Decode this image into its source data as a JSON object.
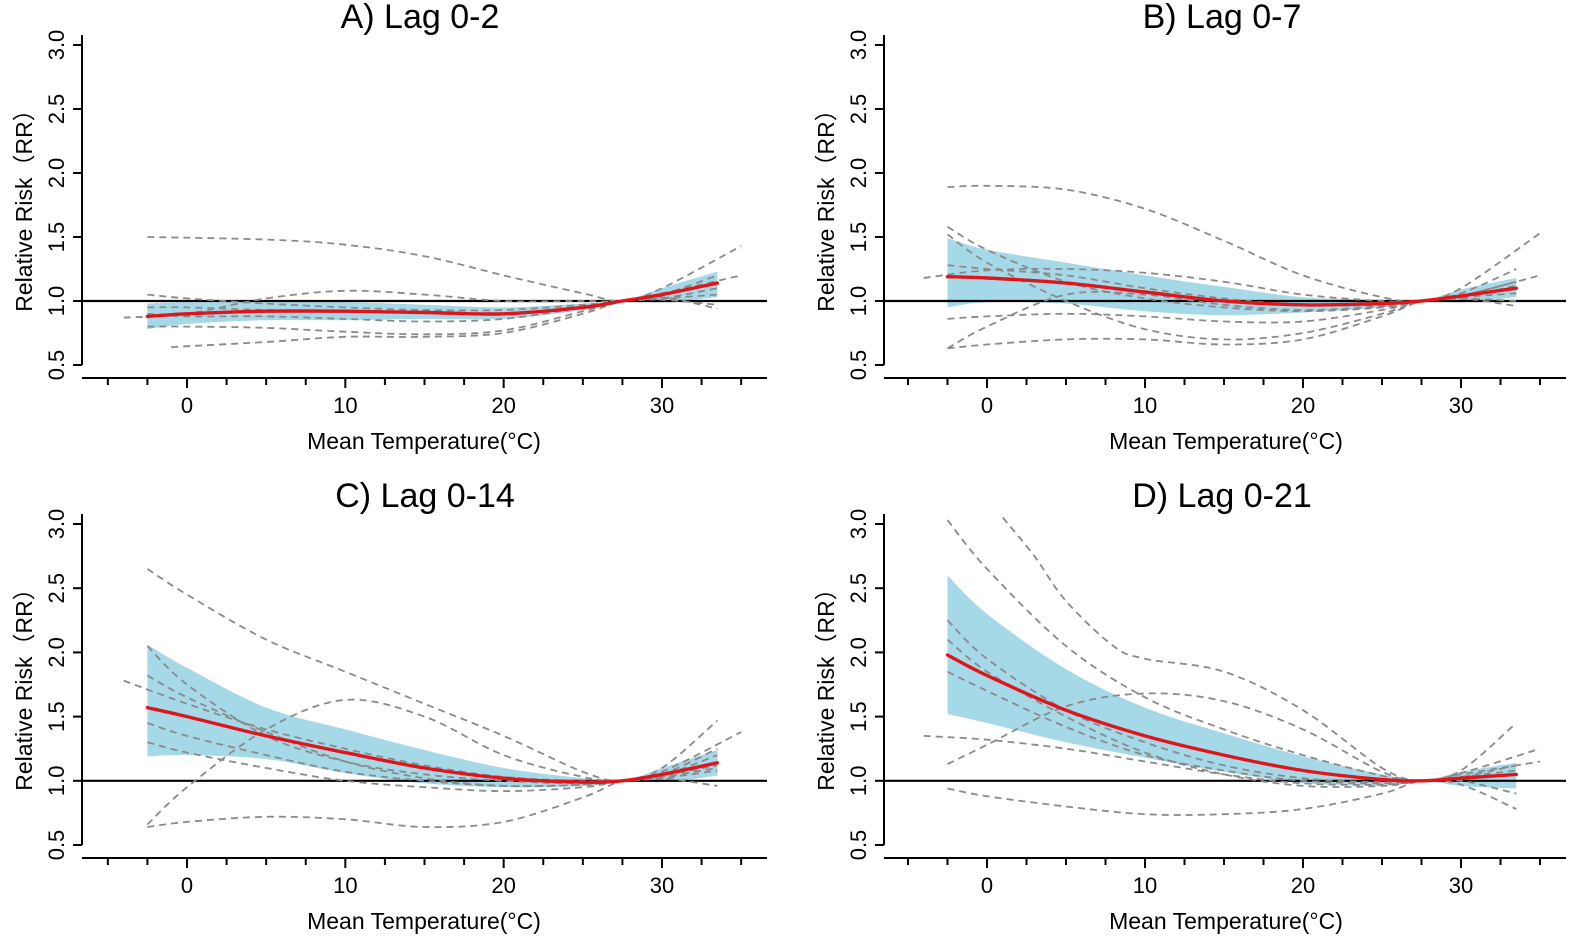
{
  "chart_data": [
    {
      "type": "line",
      "title": "A) Lag 0-2",
      "xlabel": "Mean Temperature(°C)",
      "ylabel": "Relative Risk（RR）",
      "xlim": [
        -7,
        35.5
      ],
      "ylim": [
        0.45,
        3.05
      ],
      "xticks": [
        0,
        10,
        20,
        30
      ],
      "yticks": [
        0.5,
        1.0,
        1.5,
        2.0,
        2.5,
        3.0
      ],
      "ytick_labels": [
        "0.5",
        "1.0",
        "1.5",
        "2.0",
        "2.5",
        "3.0"
      ],
      "reference_y": 1.0,
      "pooled": {
        "x": [
          -2.5,
          0,
          5,
          10,
          15,
          20,
          25,
          27.5,
          30,
          33.5
        ],
        "y": [
          0.88,
          0.9,
          0.92,
          0.92,
          0.91,
          0.9,
          0.95,
          1.0,
          1.05,
          1.14
        ]
      },
      "ci": {
        "x": [
          -2.5,
          0,
          5,
          10,
          15,
          20,
          25,
          27.5,
          30,
          33.5
        ],
        "lower": [
          0.78,
          0.82,
          0.85,
          0.85,
          0.86,
          0.86,
          0.93,
          1.0,
          0.99,
          1.03
        ],
        "upper": [
          0.98,
          0.99,
          0.99,
          0.99,
          0.97,
          0.95,
          0.98,
          1.0,
          1.1,
          1.23
        ]
      },
      "cities": [
        {
          "x": [
            -2.5,
            5,
            10,
            15,
            20,
            25,
            27.5,
            30,
            35
          ],
          "y": [
            1.5,
            1.48,
            1.44,
            1.35,
            1.2,
            1.06,
            1.0,
            1.1,
            1.43
          ]
        },
        {
          "x": [
            -4,
            0,
            5,
            10,
            15,
            20,
            25,
            27.5,
            30,
            35
          ],
          "y": [
            0.87,
            0.9,
            1.02,
            1.08,
            1.05,
            1.0,
            1.0,
            1.0,
            1.06,
            1.2
          ]
        },
        {
          "x": [
            -2.5,
            0,
            5,
            10,
            15,
            20,
            25,
            27.5,
            30,
            33.5
          ],
          "y": [
            1.05,
            1.02,
            0.98,
            0.95,
            0.93,
            0.93,
            0.97,
            1.0,
            1.05,
            1.2
          ]
        },
        {
          "x": [
            -2.5,
            0,
            5,
            10,
            15,
            20,
            25,
            27.5,
            30,
            33.5
          ],
          "y": [
            0.95,
            0.95,
            0.93,
            0.92,
            0.92,
            0.9,
            0.96,
            1.0,
            1.02,
            1.1
          ]
        },
        {
          "x": [
            -2.5,
            0,
            5,
            10,
            15,
            20,
            25,
            27.5,
            30,
            33.5
          ],
          "y": [
            0.8,
            0.8,
            0.79,
            0.76,
            0.74,
            0.77,
            0.92,
            1.0,
            1.01,
            0.97
          ]
        },
        {
          "x": [
            -1,
            5,
            10,
            15,
            20,
            25,
            27.5,
            30,
            33.5
          ],
          "y": [
            0.64,
            0.68,
            0.72,
            0.72,
            0.75,
            0.9,
            1.0,
            1.03,
            0.94
          ]
        },
        {
          "x": [
            -2.5,
            0,
            5,
            10,
            15,
            20,
            25,
            27.5,
            30,
            33.5
          ],
          "y": [
            0.9,
            0.88,
            0.88,
            0.86,
            0.84,
            0.86,
            0.95,
            1.0,
            1.02,
            1.05
          ]
        }
      ]
    },
    {
      "type": "line",
      "title": "B) Lag 0-7",
      "xlabel": "Mean Temperature(°C)",
      "ylabel": "Relative Risk（RR）",
      "xlim": [
        -7,
        35.5
      ],
      "ylim": [
        0.45,
        3.05
      ],
      "xticks": [
        0,
        10,
        20,
        30
      ],
      "yticks": [
        0.5,
        1.0,
        1.5,
        2.0,
        2.5,
        3.0
      ],
      "ytick_labels": [
        "0.5",
        "1.0",
        "1.5",
        "2.0",
        "2.5",
        "3.0"
      ],
      "reference_y": 1.0,
      "pooled": {
        "x": [
          -2.5,
          0,
          5,
          10,
          15,
          20,
          25,
          27.5,
          30,
          33.5
        ],
        "y": [
          1.19,
          1.18,
          1.14,
          1.07,
          1.0,
          0.97,
          0.98,
          1.0,
          1.04,
          1.1
        ]
      },
      "ci": {
        "x": [
          -2.5,
          0,
          5,
          10,
          15,
          20,
          25,
          27.5,
          30,
          33.5
        ],
        "lower": [
          0.95,
          0.99,
          0.98,
          0.92,
          0.89,
          0.91,
          0.95,
          1.0,
          0.99,
          1.03
        ],
        "upper": [
          1.49,
          1.4,
          1.3,
          1.2,
          1.11,
          1.03,
          1.01,
          1.0,
          1.09,
          1.18
        ]
      },
      "cities": [
        {
          "x": [
            -2.5,
            0,
            5,
            10,
            15,
            20,
            25,
            27.5,
            30,
            35
          ],
          "y": [
            1.89,
            1.9,
            1.87,
            1.72,
            1.47,
            1.2,
            1.03,
            1.0,
            1.1,
            1.53
          ]
        },
        {
          "x": [
            -4,
            0,
            5,
            10,
            15,
            20,
            25,
            27.5,
            30,
            35
          ],
          "y": [
            1.18,
            1.24,
            1.25,
            1.22,
            1.15,
            1.05,
            1.0,
            1.0,
            1.04,
            1.2
          ]
        },
        {
          "x": [
            -2.5,
            0,
            5,
            10,
            15,
            20,
            25,
            27.5,
            30,
            33.5
          ],
          "y": [
            1.58,
            1.4,
            1.15,
            1.02,
            0.95,
            0.92,
            0.95,
            1.0,
            1.06,
            1.25
          ]
        },
        {
          "x": [
            -2.5,
            0,
            5,
            10,
            15,
            20,
            25,
            27.5,
            30,
            33.5
          ],
          "y": [
            1.28,
            1.25,
            1.2,
            1.1,
            1.02,
            0.97,
            0.97,
            1.0,
            1.03,
            1.12
          ]
        },
        {
          "x": [
            -2.5,
            0,
            5,
            10,
            15,
            20,
            25,
            27.5,
            30,
            33.5
          ],
          "y": [
            0.63,
            0.8,
            1.05,
            1.05,
            0.97,
            0.93,
            0.96,
            1.0,
            1.03,
            1.06
          ]
        },
        {
          "x": [
            -2.5,
            0,
            5,
            10,
            15,
            20,
            25,
            27.5,
            30,
            33.5
          ],
          "y": [
            0.86,
            0.88,
            0.9,
            0.88,
            0.84,
            0.84,
            0.93,
            1.0,
            1.02,
            1.0
          ]
        },
        {
          "x": [
            -2.5,
            0,
            5,
            10,
            15,
            20,
            25,
            27.5,
            30,
            33.5
          ],
          "y": [
            1.52,
            1.3,
            1.0,
            0.78,
            0.7,
            0.75,
            0.9,
            1.0,
            1.02,
            0.96
          ]
        },
        {
          "x": [
            -2.5,
            0,
            5,
            10,
            15,
            20,
            25,
            27.5,
            30,
            33.5
          ],
          "y": [
            0.63,
            0.66,
            0.7,
            0.7,
            0.66,
            0.7,
            0.88,
            1.0,
            1.04,
            1.15
          ]
        }
      ]
    },
    {
      "type": "line",
      "title": "C) Lag 0-14",
      "xlabel": "Mean Temperature(°C)",
      "ylabel": "Relative Risk（RR）",
      "xlim": [
        -7,
        35.5
      ],
      "ylim": [
        0.45,
        3.05
      ],
      "xticks": [
        0,
        10,
        20,
        30
      ],
      "yticks": [
        0.5,
        1.0,
        1.5,
        2.0,
        2.5,
        3.0
      ],
      "ytick_labels": [
        "0.5",
        "1.0",
        "1.5",
        "2.0",
        "2.5",
        "3.0"
      ],
      "reference_y": 1.0,
      "pooled": {
        "x": [
          -2.5,
          0,
          5,
          10,
          15,
          20,
          25,
          27.5,
          30,
          33.5
        ],
        "y": [
          1.57,
          1.5,
          1.35,
          1.22,
          1.1,
          1.02,
          0.99,
          1.0,
          1.05,
          1.14
        ]
      },
      "ci": {
        "x": [
          -2.5,
          0,
          5,
          10,
          15,
          20,
          25,
          27.5,
          30,
          33.5
        ],
        "lower": [
          1.19,
          1.2,
          1.17,
          1.06,
          0.98,
          0.95,
          0.96,
          1.0,
          0.99,
          1.04
        ],
        "upper": [
          2.06,
          1.88,
          1.57,
          1.4,
          1.24,
          1.1,
          1.02,
          1.0,
          1.1,
          1.24
        ]
      },
      "cities": [
        {
          "x": [
            -2.5,
            0,
            5,
            10,
            15,
            20,
            25,
            27.5,
            30,
            33.5
          ],
          "y": [
            2.65,
            2.45,
            2.1,
            1.85,
            1.6,
            1.35,
            1.07,
            1.0,
            1.1,
            1.47
          ]
        },
        {
          "x": [
            -4,
            0,
            5,
            10,
            15,
            20,
            25,
            27.5,
            30,
            35
          ],
          "y": [
            1.78,
            1.6,
            1.4,
            1.25,
            1.12,
            1.03,
            1.0,
            1.0,
            1.07,
            1.38
          ]
        },
        {
          "x": [
            -2.5,
            0,
            5,
            10,
            15,
            20,
            25,
            27.5,
            30,
            33.5
          ],
          "y": [
            0.66,
            0.95,
            1.4,
            1.63,
            1.5,
            1.2,
            1.03,
            1.0,
            1.04,
            1.2
          ]
        },
        {
          "x": [
            -2.5,
            0,
            5,
            10,
            15,
            20,
            25,
            27.5,
            30,
            33.5
          ],
          "y": [
            2.05,
            1.75,
            1.35,
            1.15,
            1.05,
            1.0,
            0.98,
            1.0,
            1.05,
            1.25
          ]
        },
        {
          "x": [
            -2.5,
            0,
            5,
            10,
            15,
            20,
            25,
            27.5,
            30,
            33.5
          ],
          "y": [
            1.45,
            1.35,
            1.2,
            1.07,
            1.0,
            0.96,
            0.97,
            1.0,
            1.02,
            1.08
          ]
        },
        {
          "x": [
            -2.5,
            0,
            5,
            10,
            15,
            20,
            25,
            27.5,
            30,
            33.5
          ],
          "y": [
            0.64,
            0.68,
            0.72,
            0.7,
            0.64,
            0.68,
            0.87,
            1.0,
            1.02,
            0.96
          ]
        },
        {
          "x": [
            -2.5,
            0,
            5,
            10,
            15,
            20,
            25,
            27.5,
            30,
            33.5
          ],
          "y": [
            1.82,
            1.65,
            1.38,
            1.15,
            1.02,
            0.96,
            0.97,
            1.0,
            1.04,
            1.12
          ]
        },
        {
          "x": [
            -2.5,
            0,
            5,
            10,
            15,
            20,
            25,
            27.5,
            30,
            33.5
          ],
          "y": [
            1.3,
            1.22,
            1.1,
            1.0,
            0.95,
            0.92,
            0.95,
            1.0,
            1.03,
            1.1
          ]
        }
      ]
    },
    {
      "type": "line",
      "title": "D) Lag 0-21",
      "xlabel": "Mean Temperature(°C)",
      "ylabel": "Relative Risk（RR）",
      "xlim": [
        -7,
        35.5
      ],
      "ylim": [
        0.45,
        3.05
      ],
      "xticks": [
        0,
        10,
        20,
        30
      ],
      "yticks": [
        0.5,
        1.0,
        1.5,
        2.0,
        2.5,
        3.0
      ],
      "ytick_labels": [
        "0.5",
        "1.0",
        "1.5",
        "2.0",
        "2.5",
        "3.0"
      ],
      "reference_y": 1.0,
      "pooled": {
        "x": [
          -2.5,
          0,
          5,
          10,
          15,
          20,
          25,
          27.5,
          30,
          33.5
        ],
        "y": [
          1.98,
          1.82,
          1.55,
          1.35,
          1.2,
          1.08,
          1.01,
          1.0,
          1.02,
          1.05
        ]
      },
      "ci": {
        "x": [
          -2.5,
          0,
          5,
          10,
          15,
          20,
          25,
          27.5,
          30,
          33.5
        ],
        "lower": [
          1.52,
          1.45,
          1.3,
          1.18,
          1.07,
          0.98,
          0.97,
          1.0,
          0.96,
          0.94
        ],
        "upper": [
          2.6,
          2.3,
          1.87,
          1.57,
          1.37,
          1.19,
          1.05,
          1.0,
          1.07,
          1.14
        ]
      },
      "cities": [
        {
          "x": [
            -2.5,
            0,
            5,
            10,
            15,
            20,
            25,
            27.5,
            30,
            33.5
          ],
          "y": [
            3.03,
            2.65,
            2.05,
            1.65,
            1.4,
            1.2,
            1.04,
            1.0,
            1.08,
            1.45
          ]
        },
        {
          "x": [
            1,
            3,
            5,
            8,
            10,
            15,
            20,
            25,
            27.5,
            30,
            35
          ],
          "y": [
            3.05,
            2.75,
            2.4,
            2.05,
            1.95,
            1.85,
            1.55,
            1.1,
            1.0,
            1.06,
            1.25
          ]
        },
        {
          "x": [
            -2.5,
            0,
            5,
            10,
            15,
            20,
            25,
            27.5,
            30,
            35
          ],
          "y": [
            1.13,
            1.28,
            1.58,
            1.68,
            1.62,
            1.4,
            1.07,
            1.0,
            1.05,
            1.15
          ]
        },
        {
          "x": [
            -4,
            0,
            5,
            10,
            15,
            20,
            25,
            27.5,
            30,
            33.5
          ],
          "y": [
            1.35,
            1.32,
            1.25,
            1.15,
            1.05,
            0.98,
            0.97,
            1.0,
            1.03,
            1.08
          ]
        },
        {
          "x": [
            -2.5,
            0,
            5,
            10,
            15,
            20,
            25,
            27.5,
            30,
            33.5
          ],
          "y": [
            2.25,
            1.95,
            1.55,
            1.3,
            1.12,
            1.02,
            0.99,
            1.0,
            1.02,
            1.05
          ]
        },
        {
          "x": [
            -2.5,
            0,
            5,
            10,
            15,
            20,
            25,
            27.5,
            30,
            33.5
          ],
          "y": [
            0.94,
            0.88,
            0.8,
            0.74,
            0.74,
            0.78,
            0.9,
            1.0,
            0.97,
            0.78
          ]
        },
        {
          "x": [
            -2.5,
            0,
            5,
            10,
            15,
            20,
            25,
            27.5,
            30,
            33.5
          ],
          "y": [
            1.85,
            1.7,
            1.42,
            1.2,
            1.08,
            1.0,
            0.98,
            1.0,
            1.0,
            0.9
          ]
        },
        {
          "x": [
            -2.5,
            0,
            5,
            10,
            15,
            20,
            25,
            27.5,
            30,
            33.5
          ],
          "y": [
            2.1,
            1.85,
            1.5,
            1.22,
            1.05,
            0.96,
            0.96,
            1.0,
            1.03,
            1.12
          ]
        }
      ]
    }
  ]
}
